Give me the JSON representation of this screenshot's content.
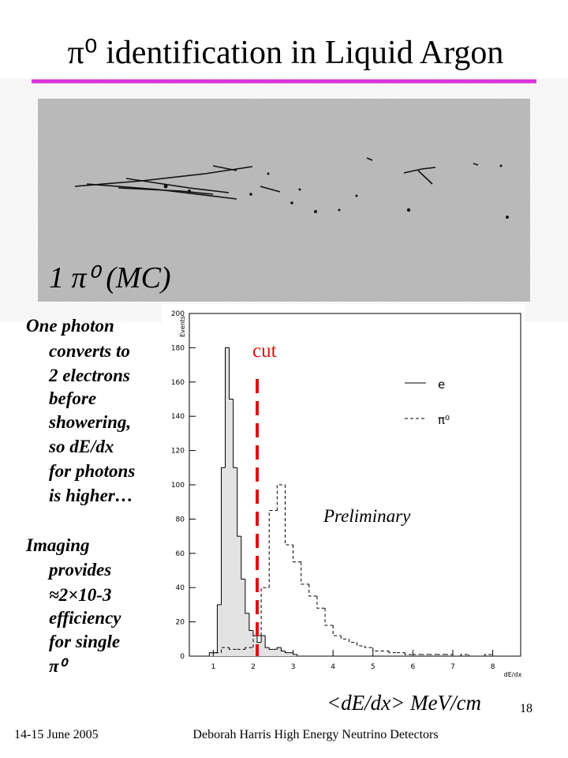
{
  "slide": {
    "title": "π⁰ identification in Liquid Argon",
    "image_label": "1 π⁰ (MC)",
    "notes": [
      {
        "lines": [
          "One photon",
          "converts to",
          "2 electrons",
          "before",
          "showering,",
          "so dE/dx",
          "for photons",
          "is higher…"
        ]
      },
      {
        "lines": [
          "Imaging",
          "provides",
          "≈2×10-3",
          "efficiency",
          "for single",
          "π⁰"
        ]
      }
    ],
    "axis_caption": "<dE/dx> MeV/cm",
    "footer_left": "14-15 June 2005",
    "footer_center": "Deborah Harris  High Energy Neutrino Detectors",
    "page_number": "18"
  },
  "chart_data": {
    "type": "histogram",
    "x_label": "dE/dx",
    "y_label": "Events",
    "xlim": [
      0.4,
      8.7
    ],
    "ylim": [
      0,
      200
    ],
    "xticks": [
      1,
      2,
      3,
      4,
      5,
      6,
      7,
      8
    ],
    "yticks": [
      0,
      20,
      40,
      60,
      80,
      100,
      120,
      140,
      160,
      180,
      200
    ],
    "series": [
      {
        "name": "e",
        "color": "#000000",
        "fill": "#e2e2e2",
        "dash": false,
        "bins": [
          0.9,
          1.0,
          1.1,
          1.2,
          1.3,
          1.4,
          1.5,
          1.6,
          1.7,
          1.8,
          1.9,
          2.0,
          2.1,
          2.2,
          2.3,
          2.4,
          2.5,
          2.6,
          2.7,
          2.8,
          2.9,
          3.0,
          3.1
        ],
        "values": [
          2,
          2,
          30,
          110,
          180,
          150,
          110,
          70,
          45,
          25,
          15,
          12,
          8,
          12,
          5,
          4,
          4,
          5,
          3,
          2,
          2,
          1
        ]
      },
      {
        "name": "π⁰",
        "color": "#000000",
        "fill": "none",
        "dash": true,
        "bins": [
          1.0,
          1.2,
          1.4,
          1.6,
          1.8,
          2.0,
          2.2,
          2.4,
          2.6,
          2.8,
          3.0,
          3.2,
          3.4,
          3.6,
          3.8,
          4.0,
          4.2,
          4.4,
          4.6,
          4.8,
          5.0,
          5.2,
          5.4,
          5.6,
          5.8,
          6.0,
          6.2,
          6.4,
          6.6,
          6.8,
          7.0,
          7.2,
          7.4,
          7.6,
          7.8,
          8.0
        ],
        "values": [
          2,
          5,
          4,
          4,
          5,
          12,
          40,
          85,
          100,
          65,
          55,
          42,
          35,
          28,
          18,
          12,
          10,
          8,
          6,
          5,
          3,
          3,
          2,
          2,
          1,
          1,
          1,
          1,
          1,
          1,
          0,
          1,
          0,
          0,
          1
        ]
      }
    ],
    "cut": {
      "x": 2.1,
      "label": "cut",
      "color": "#dd1111"
    },
    "annotation": "Preliminary"
  }
}
